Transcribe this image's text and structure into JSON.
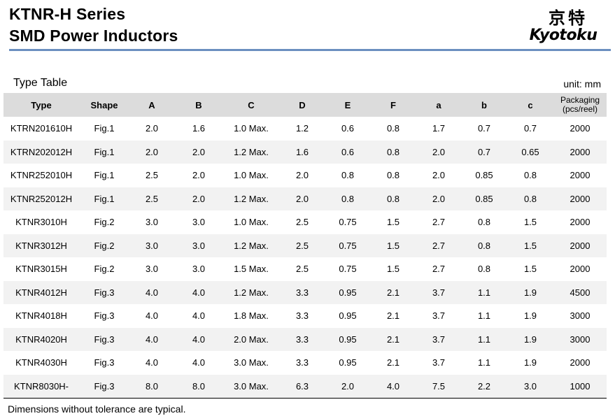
{
  "header": {
    "title_line1": "KTNR-H Series",
    "title_line2": "SMD Power Inductors",
    "logo_cn": "京特",
    "logo_en": "Kyotoku"
  },
  "section": {
    "label": "Type Table",
    "unit": "unit:  mm"
  },
  "table": {
    "columns": [
      "Type",
      "Shape",
      "A",
      "B",
      "C",
      "D",
      "E",
      "F",
      "a",
      "b",
      "c"
    ],
    "packaging_header_line1": "Packaging",
    "packaging_header_line2": "(pcs/reel)",
    "rows": [
      [
        "KTRN201610H",
        "Fig.1",
        "2.0",
        "1.6",
        "1.0 Max.",
        "1.2",
        "0.6",
        "0.8",
        "1.7",
        "0.7",
        "0.7",
        "2000"
      ],
      [
        "KTRN202012H",
        "Fig.1",
        "2.0",
        "2.0",
        "1.2 Max.",
        "1.6",
        "0.6",
        "0.8",
        "2.0",
        "0.7",
        "0.65",
        "2000"
      ],
      [
        "KTNR252010H",
        "Fig.1",
        "2.5",
        "2.0",
        "1.0 Max.",
        "2.0",
        "0.8",
        "0.8",
        "2.0",
        "0.85",
        "0.8",
        "2000"
      ],
      [
        "KTNR252012H",
        "Fig.1",
        "2.5",
        "2.0",
        "1.2 Max.",
        "2.0",
        "0.8",
        "0.8",
        "2.0",
        "0.85",
        "0.8",
        "2000"
      ],
      [
        "KTNR3010H",
        "Fig.2",
        "3.0",
        "3.0",
        "1.0 Max.",
        "2.5",
        "0.75",
        "1.5",
        "2.7",
        "0.8",
        "1.5",
        "2000"
      ],
      [
        "KTNR3012H",
        "Fig.2",
        "3.0",
        "3.0",
        "1.2 Max.",
        "2.5",
        "0.75",
        "1.5",
        "2.7",
        "0.8",
        "1.5",
        "2000"
      ],
      [
        "KTNR3015H",
        "Fig.2",
        "3.0",
        "3.0",
        "1.5 Max.",
        "2.5",
        "0.75",
        "1.5",
        "2.7",
        "0.8",
        "1.5",
        "2000"
      ],
      [
        "KTNR4012H",
        "Fig.3",
        "4.0",
        "4.0",
        "1.2 Max.",
        "3.3",
        "0.95",
        "2.1",
        "3.7",
        "1.1",
        "1.9",
        "4500"
      ],
      [
        "KTNR4018H",
        "Fig.3",
        "4.0",
        "4.0",
        "1.8 Max.",
        "3.3",
        "0.95",
        "2.1",
        "3.7",
        "1.1",
        "1.9",
        "3000"
      ],
      [
        "KTNR4020H",
        "Fig.3",
        "4.0",
        "4.0",
        "2.0 Max.",
        "3.3",
        "0.95",
        "2.1",
        "3.7",
        "1.1",
        "1.9",
        "3000"
      ],
      [
        "KTNR4030H",
        "Fig.3",
        "4.0",
        "4.0",
        "3.0 Max.",
        "3.3",
        "0.95",
        "2.1",
        "3.7",
        "1.1",
        "1.9",
        "2000"
      ],
      [
        "KTNR8030H-",
        "Fig.3",
        "8.0",
        "8.0",
        "3.0 Max.",
        "6.3",
        "2.0",
        "4.0",
        "7.5",
        "2.2",
        "3.0",
        "1000"
      ]
    ]
  },
  "footer": {
    "note": "Dimensions without tolerance are typical."
  },
  "colors": {
    "rule": "#6b8fc0",
    "header_bg": "#dcdcdc",
    "alt_row_bg": "#f2f2f2"
  }
}
